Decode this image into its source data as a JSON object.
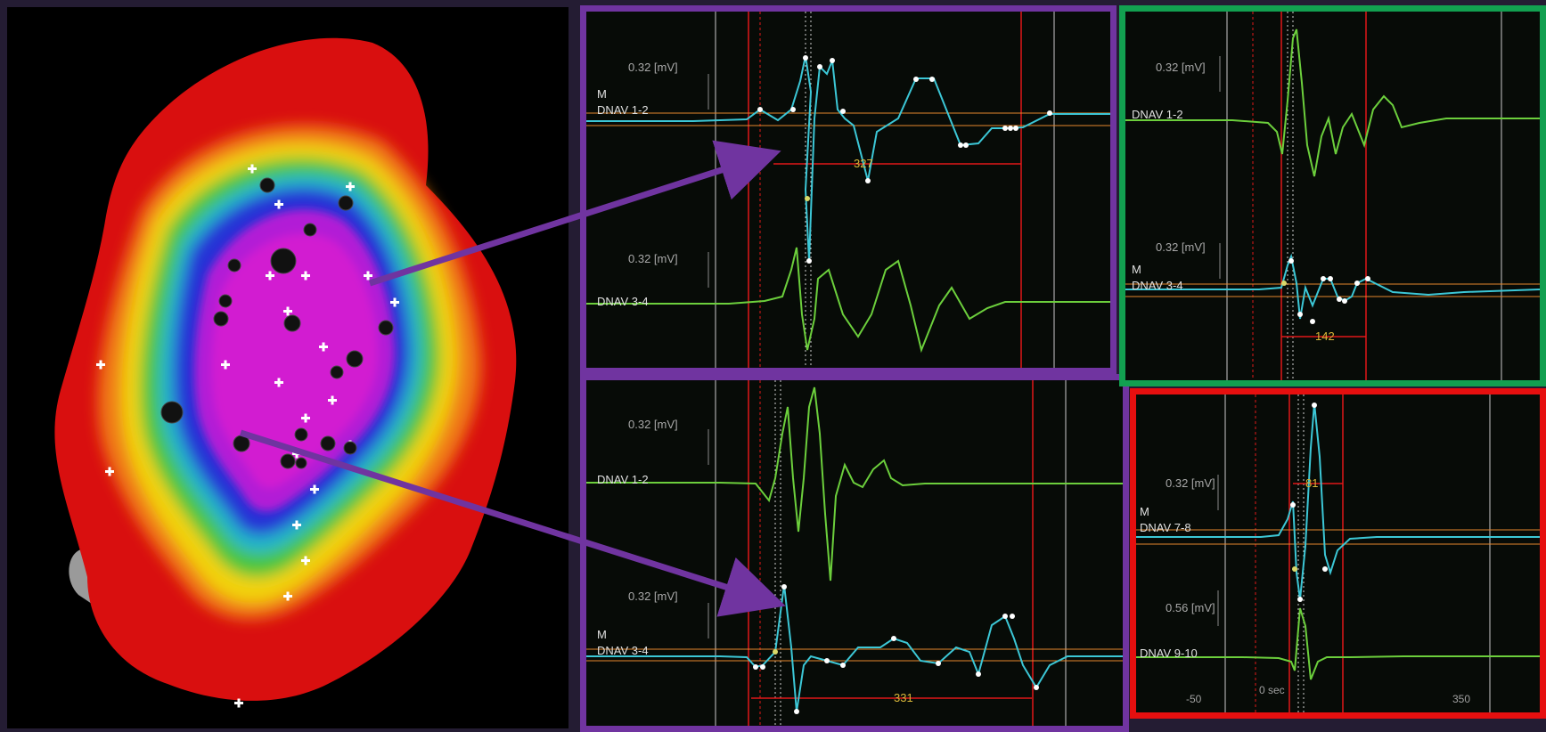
{
  "colors": {
    "border_left_panels": "#7034a0",
    "border_top_right": "#12a050",
    "border_bottom_right": "#e60f0f",
    "trace_green": "#6ccf3c",
    "trace_cyan": "#3cc7d6",
    "red_marker": "#e01818",
    "orange_line": "#e6872c",
    "arrow": "#7034a0"
  },
  "panels": [
    {
      "id": "p1",
      "channels": [
        {
          "scale": "0.32  [mV]",
          "name": "DNAV 1-2",
          "marker": "M"
        },
        {
          "scale": "0.32  [mV]",
          "name": "DNAV 3-4",
          "marker": ""
        }
      ],
      "duration": "327"
    },
    {
      "id": "p2",
      "channels": [
        {
          "scale": "0.32  [mV]",
          "name": "DNAV 1-2",
          "marker": ""
        },
        {
          "scale": "0.32  [mV]",
          "name": "DNAV 3-4",
          "marker": "M"
        }
      ],
      "duration": "331"
    },
    {
      "id": "p3",
      "channels": [
        {
          "scale": "0.32  [mV]",
          "name": "DNAV 1-2",
          "marker": ""
        },
        {
          "scale": "0.32  [mV]",
          "name": "DNAV 3-4",
          "marker": "M"
        }
      ],
      "duration": "142"
    },
    {
      "id": "p4",
      "channels": [
        {
          "scale": "0.32  [mV]",
          "name": "DNAV 7-8",
          "marker": "M"
        },
        {
          "scale": "0.56  [mV]",
          "name": "DNAV 9-10",
          "marker": ""
        }
      ],
      "duration": "81",
      "axis": {
        "start": "-50",
        "zero": "0 sec",
        "end": "350"
      }
    }
  ]
}
